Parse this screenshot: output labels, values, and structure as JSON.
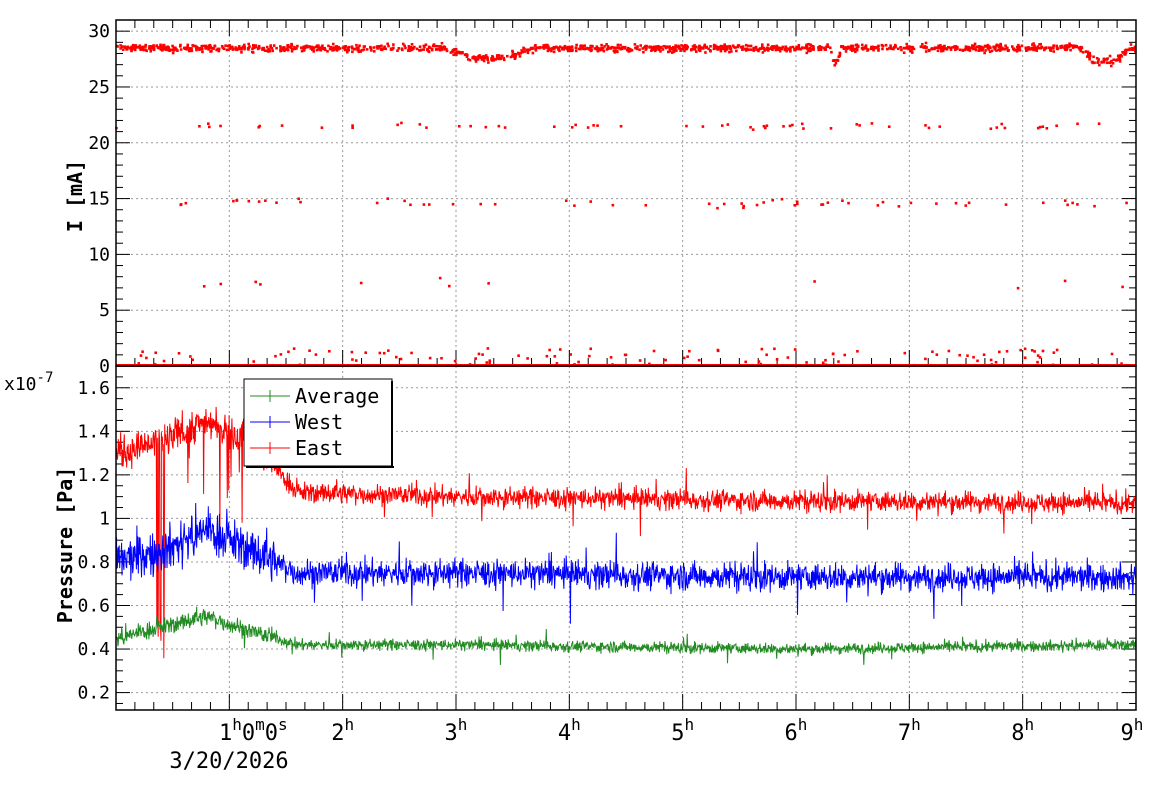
{
  "chart_data": [
    {
      "type": "scatter",
      "name": "beam-current",
      "ylabel": "I [mA]",
      "ylim": [
        0,
        31
      ],
      "xlim_hours": [
        0,
        9
      ],
      "yticks": [
        0,
        5,
        10,
        15,
        20,
        25,
        30
      ],
      "grid": true,
      "color": "#ff0000",
      "series": [
        {
          "bands": [
            {
              "level": 28.5,
              "spread": 0.5,
              "density": "continuous"
            },
            {
              "level": 21.5,
              "spread": 0.5,
              "density": "sparse"
            },
            {
              "level": 14.6,
              "spread": 0.6,
              "density": "sparse"
            },
            {
              "level": 7.5,
              "spread": 0.8,
              "density": "rare"
            },
            {
              "level": 0.8,
              "spread": 0.8,
              "density": "sparse"
            },
            {
              "level": 0.0,
              "spread": 0.0,
              "density": "continuous"
            }
          ],
          "dips": [
            {
              "from_h": 2.9,
              "to_h": 3.7,
              "to": 27.6
            },
            {
              "from_h": 6.3,
              "to_h": 6.4,
              "to": 27.2
            },
            {
              "from_h": 8.5,
              "to_h": 8.95,
              "to": 27.3
            }
          ]
        }
      ]
    },
    {
      "type": "line",
      "name": "pressure",
      "ylabel": "Pressure [Pa]",
      "scale_label": "x10",
      "scale_exponent": "-7",
      "ylim": [
        0.12,
        1.7
      ],
      "xlim_hours": [
        0,
        9
      ],
      "yticks": [
        "0.2",
        "0.4",
        "0.6",
        "0.8",
        "1",
        "1.2",
        "1.4",
        "1.6"
      ],
      "grid": true,
      "legend_position": "top-left",
      "series": [
        {
          "name": "Average",
          "color": "#228b22",
          "base": 0.42,
          "noise": 0.08,
          "profile": [
            [
              0,
              0.45
            ],
            [
              0.4,
              0.5
            ],
            [
              0.8,
              0.55
            ],
            [
              1.2,
              0.48
            ],
            [
              1.6,
              0.42
            ],
            [
              3,
              0.42
            ],
            [
              6,
              0.4
            ],
            [
              9,
              0.42
            ]
          ]
        },
        {
          "name": "West",
          "color": "#0000ff",
          "base": 0.75,
          "noise": 0.2,
          "profile": [
            [
              0,
              0.8
            ],
            [
              0.4,
              0.85
            ],
            [
              0.8,
              0.95
            ],
            [
              1.2,
              0.85
            ],
            [
              1.6,
              0.75
            ],
            [
              3,
              0.75
            ],
            [
              6,
              0.73
            ],
            [
              9,
              0.73
            ]
          ]
        },
        {
          "name": "East",
          "color": "#ff0000",
          "base": 1.08,
          "noise": 0.15,
          "profile": [
            [
              0,
              1.3
            ],
            [
              0.4,
              1.35
            ],
            [
              0.8,
              1.45
            ],
            [
              1.2,
              1.35
            ],
            [
              1.6,
              1.12
            ],
            [
              3,
              1.1
            ],
            [
              6,
              1.08
            ],
            [
              9,
              1.07
            ]
          ]
        }
      ]
    }
  ],
  "time_axis": {
    "labels": [
      {
        "hour": 1,
        "base": "1",
        "sup": "h",
        "mid": "0",
        "sup2": "m",
        "mid2": "0",
        "sup3": "s"
      },
      {
        "hour": 2,
        "base": "2",
        "sup": "h"
      },
      {
        "hour": 3,
        "base": "3",
        "sup": "h"
      },
      {
        "hour": 4,
        "base": "4",
        "sup": "h"
      },
      {
        "hour": 5,
        "base": "5",
        "sup": "h"
      },
      {
        "hour": 6,
        "base": "6",
        "sup": "h"
      },
      {
        "hour": 7,
        "base": "7",
        "sup": "h"
      },
      {
        "hour": 8,
        "base": "8",
        "sup": "h"
      },
      {
        "hour": 9,
        "base": "9",
        "sup": "h"
      }
    ],
    "date": "3/20/2026"
  }
}
